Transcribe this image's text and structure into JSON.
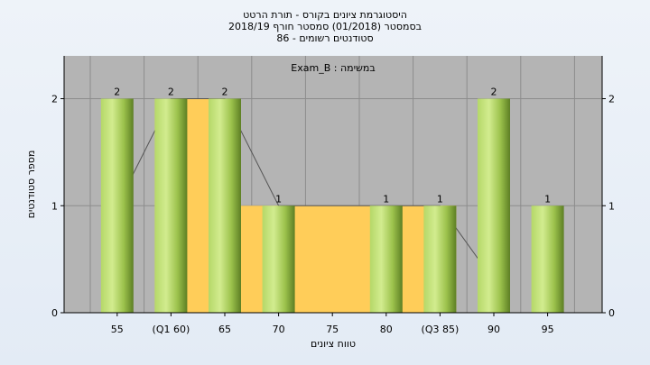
{
  "titles": {
    "line1": "היסטוגרמת ציונים בקורס - תורת הרטט",
    "line2": "בסמסטר  (01/2018)  סמסטר חורף  2018/19",
    "line3": "סטודנטים רשומים - 86"
  },
  "chart_data": {
    "type": "bar",
    "xlabel": "טווח ציונים",
    "ylabel": "מספר סטודנטים",
    "ylim": [
      0,
      2.4
    ],
    "yticks": [
      0,
      1,
      2
    ],
    "categories": [
      "55",
      "(Q1 60)",
      "65",
      "70",
      "75",
      "80",
      "(Q3 85)",
      "90",
      "95"
    ],
    "values": [
      2,
      2,
      2,
      1,
      null,
      1,
      1,
      2,
      1
    ],
    "value_labels": [
      "2",
      "2",
      "2",
      "1",
      "",
      "1",
      "1",
      "2",
      "1"
    ],
    "legend_text": "Exam_B : במשימה",
    "iqr_band": {
      "from_index": 1,
      "to_index": 6,
      "values": [
        2,
        2,
        1,
        1,
        1,
        1
      ]
    },
    "trend_line": [
      1,
      2,
      2,
      1,
      1,
      1,
      1,
      0.3,
      null
    ],
    "colors": {
      "plot_bg": "#b4b4b4",
      "bar_light": "#c9e683",
      "bar_dark": "#5d7f24",
      "band": "#ffcd59",
      "grid": "#8c8c8c"
    },
    "grid": true
  }
}
